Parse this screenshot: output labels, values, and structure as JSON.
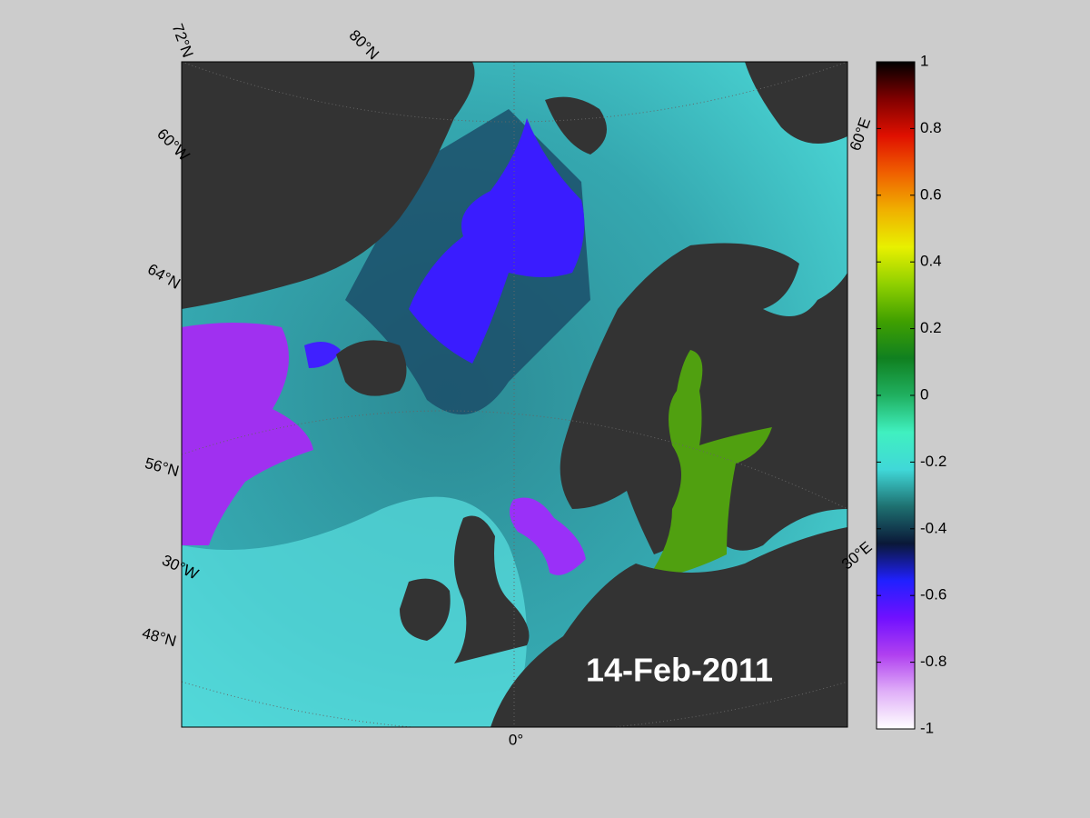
{
  "map": {
    "date": "14-Feb-2011",
    "graticule_labels": [
      "72°N",
      "80°N",
      "60°W",
      "64°N",
      "56°N",
      "30°W",
      "48°N",
      "0°",
      "60°E",
      "30°E"
    ]
  },
  "colorbar": {
    "ylim": [
      -1,
      1
    ],
    "yticks": [
      1,
      0.8,
      0.6,
      0.4,
      0.2,
      0,
      -0.2,
      -0.4,
      -0.6,
      -0.8,
      -1
    ],
    "colormap": [
      "#ffffff",
      "#e0b0f8",
      "#b040f0",
      "#7010ff",
      "#2020ff",
      "#0a1838",
      "#1e7070",
      "#40d8d8",
      "#40f0c0",
      "#20b060",
      "#108020",
      "#40a000",
      "#90d000",
      "#e8f000",
      "#f0b000",
      "#f06000",
      "#e01000",
      "#800000",
      "#000000"
    ]
  }
}
